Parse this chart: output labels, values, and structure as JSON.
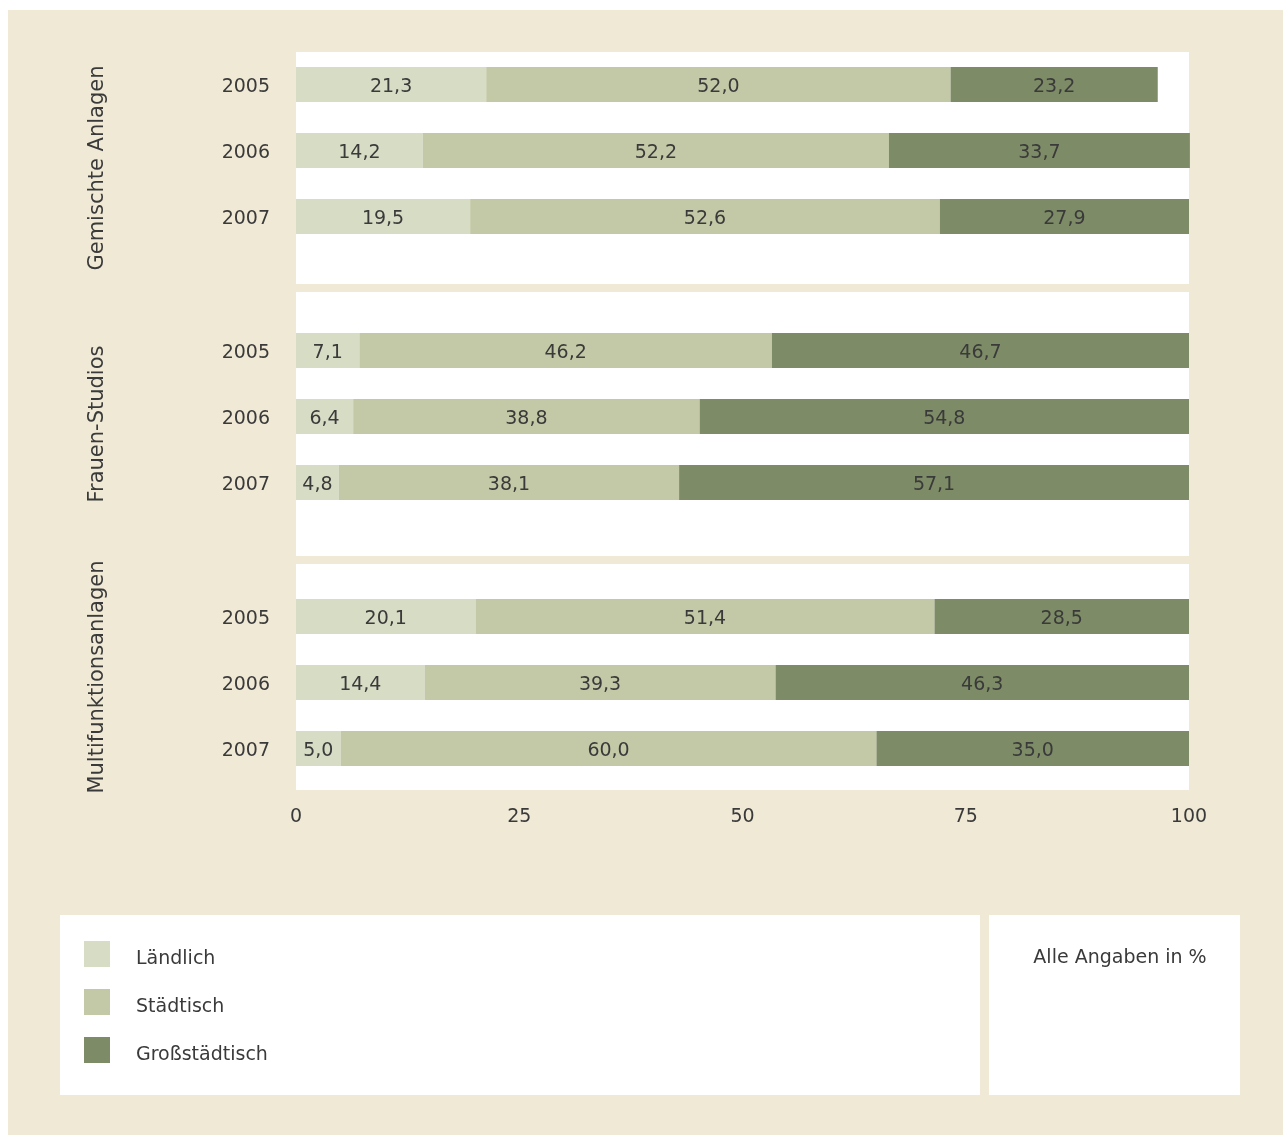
{
  "chart_data": [
    {
      "type": "bar",
      "orientation": "horizontal",
      "stacked": true,
      "ylabel": "Gemischte Anlagen",
      "categories": [
        "2005",
        "2006",
        "2007"
      ],
      "xlim": [
        0,
        100
      ],
      "tick_labels": "y",
      "legend": false,
      "series": [
        {
          "color": "#d7dcc5",
          "values": [
            21.3,
            14.2,
            19.5
          ],
          "value_labels": [
            "21,3",
            "14,2",
            "19,5"
          ]
        },
        {
          "color": "#c3c9a6",
          "values": [
            52.0,
            52.2,
            52.6
          ],
          "value_labels": [
            "52,0",
            "52,2",
            "52,6"
          ]
        },
        {
          "color": "#7d8b66",
          "values": [
            23.2,
            33.7,
            27.9
          ],
          "value_labels": [
            "23,2",
            "33,7",
            "27,9"
          ]
        }
      ]
    },
    {
      "type": "bar",
      "orientation": "horizontal",
      "stacked": true,
      "ylabel": "Frauen-Studios",
      "categories": [
        "2005",
        "2006",
        "2007"
      ],
      "xlim": [
        0,
        100
      ],
      "tick_labels": "y",
      "legend": false,
      "series": [
        {
          "color": "#d7dcc5",
          "values": [
            7.1,
            6.4,
            4.8
          ],
          "value_labels": [
            "7,1",
            "6,4",
            "4,8"
          ]
        },
        {
          "color": "#c3c9a6",
          "values": [
            46.2,
            38.8,
            38.1
          ],
          "value_labels": [
            "46,2",
            "38,8",
            "38,1"
          ]
        },
        {
          "color": "#7d8b66",
          "values": [
            46.7,
            54.8,
            57.1
          ],
          "value_labels": [
            "46,7",
            "54,8",
            "57,1"
          ]
        }
      ]
    },
    {
      "type": "bar",
      "orientation": "horizontal",
      "stacked": true,
      "ylabel": "Multifunktionsanlagen",
      "categories": [
        "2005",
        "2006",
        "2007"
      ],
      "xlim": [
        0,
        100
      ],
      "xticks": [
        0,
        25,
        50,
        75,
        100
      ],
      "legend": "bottom",
      "annotations": [
        "Alle Angaben in %"
      ],
      "series": [
        {
          "name": "Ländlich",
          "color": "#d7dcc5",
          "values": [
            20.1,
            14.4,
            5.0
          ],
          "value_labels": [
            "20,1",
            "14,4",
            "5,0"
          ]
        },
        {
          "name": "Städtisch",
          "color": "#c3c9a6",
          "values": [
            51.4,
            39.3,
            60.0
          ],
          "value_labels": [
            "51,4",
            "39,3",
            "60,0"
          ]
        },
        {
          "name": "Großstädtisch",
          "color": "#7d8b66",
          "values": [
            28.5,
            46.3,
            35.0
          ],
          "value_labels": [
            "28,5",
            "46,3",
            "35,0"
          ]
        }
      ]
    }
  ]
}
